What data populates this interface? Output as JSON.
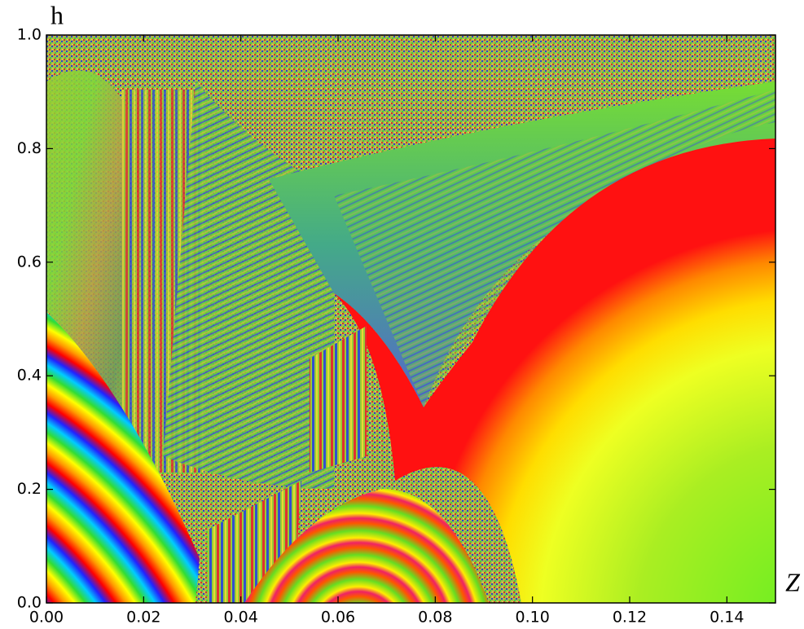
{
  "chart_data": {
    "type": "image",
    "x_label": "Z",
    "y_label": "h",
    "xlim": [
      0,
      0.15
    ],
    "ylim": [
      0,
      1
    ],
    "xticks": [
      {
        "value": 0,
        "label": "0.00"
      },
      {
        "value": 0.02,
        "label": "0.02"
      },
      {
        "value": 0.04,
        "label": "0.04"
      },
      {
        "value": 0.06,
        "label": "0.06"
      },
      {
        "value": 0.08,
        "label": "0.08"
      },
      {
        "value": 0.1,
        "label": "0.10"
      },
      {
        "value": 0.12,
        "label": "0.12"
      },
      {
        "value": 0.14,
        "label": "0.14"
      }
    ],
    "yticks": [
      {
        "value": 0,
        "label": "0.0"
      },
      {
        "value": 0.2,
        "label": "0.2"
      },
      {
        "value": 0.4,
        "label": "0.4"
      },
      {
        "value": 0.6,
        "label": "0.6"
      },
      {
        "value": 0.8,
        "label": "0.8"
      },
      {
        "value": 1,
        "label": "1.0"
      }
    ]
  }
}
